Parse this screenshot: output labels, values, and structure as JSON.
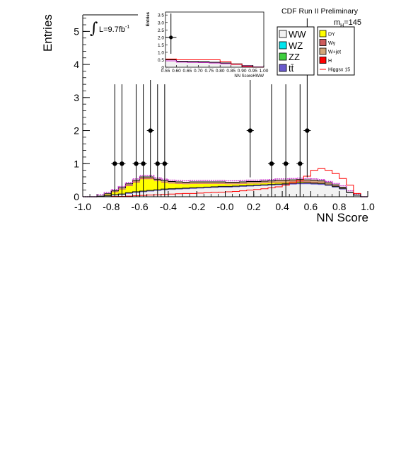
{
  "chart_data": {
    "type": "histogram",
    "header": "CDF Run II Preliminary",
    "xlabel": "NN Score",
    "ylabel": "Entries",
    "luminosity_label": "L=9.7fb",
    "luminosity_sup": "-1",
    "mass_label": "m",
    "mass_sub": "H",
    "mass_value": "=145",
    "xlim": [
      -1.0,
      1.0
    ],
    "ylim": [
      0,
      5.5
    ],
    "x_tick_labels": [
      "-1.0",
      "-0.8",
      "-0.6",
      "-0.4",
      "-0.2",
      "-0.0",
      "0.2",
      "0.4",
      "0.6",
      "0.8",
      "1.0"
    ],
    "y_tick_labels": [
      "0",
      "1",
      "2",
      "3",
      "4",
      "5"
    ],
    "legend": {
      "left": [
        {
          "label": "WW",
          "color": "#f2f2f2"
        },
        {
          "label": "WZ",
          "color": "#00e5ee"
        },
        {
          "label": "ZZ",
          "color": "#3fcf3f"
        },
        {
          "label": "tt̄",
          "color": "#6a5acd"
        }
      ],
      "right": [
        {
          "label": "DY",
          "color": "#ffff00"
        },
        {
          "label": "Wγ",
          "color": "#cd5c5c"
        },
        {
          "label": "W+jet",
          "color": "#d2a679"
        },
        {
          "label": "H",
          "color": "#ff0000"
        },
        {
          "label": "Higgsx 15",
          "color": "#ff0000",
          "style": "line"
        }
      ]
    },
    "bin_width": 0.05,
    "bin_edges_start": -1.0,
    "stack_order": [
      "WW",
      "tt",
      "ZZ",
      "WZ",
      "DY",
      "Wgamma",
      "Wjet",
      "H"
    ],
    "stack_colors": {
      "WW": "#f2f2f2",
      "tt": "#6a5acd",
      "ZZ": "#3fcf3f",
      "WZ": "#00e5ee",
      "DY": "#ffff00",
      "Wgamma": "#cd5c5c",
      "Wjet": "#d2a679",
      "H": "#ff0000"
    },
    "background_stack": {
      "WW": [
        0,
        0,
        0.01,
        0.02,
        0.04,
        0.06,
        0.09,
        0.12,
        0.14,
        0.16,
        0.18,
        0.2,
        0.21,
        0.22,
        0.23,
        0.24,
        0.25,
        0.26,
        0.27,
        0.28,
        0.28,
        0.29,
        0.3,
        0.31,
        0.32,
        0.33,
        0.34,
        0.35,
        0.36,
        0.37,
        0.38,
        0.38,
        0.37,
        0.36,
        0.33,
        0.28,
        0.22,
        0.12,
        0.04,
        0
      ],
      "tt": [
        0,
        0,
        0,
        0.01,
        0.01,
        0.01,
        0.02,
        0.02,
        0.02,
        0.02,
        0.02,
        0.02,
        0.02,
        0.02,
        0.02,
        0.02,
        0.02,
        0.02,
        0.02,
        0.02,
        0.02,
        0.02,
        0.02,
        0.02,
        0.02,
        0.02,
        0.02,
        0.02,
        0.02,
        0.03,
        0.03,
        0.03,
        0.03,
        0.03,
        0.02,
        0.02,
        0.02,
        0.01,
        0.01,
        0
      ],
      "ZZ": [
        0,
        0,
        0,
        0,
        0.01,
        0.01,
        0.01,
        0.01,
        0.01,
        0.01,
        0.01,
        0.01,
        0.01,
        0.01,
        0.01,
        0.01,
        0.01,
        0.01,
        0.01,
        0.01,
        0.01,
        0.01,
        0.01,
        0.01,
        0.01,
        0.01,
        0.01,
        0.01,
        0.01,
        0.01,
        0.01,
        0.01,
        0.01,
        0.01,
        0.01,
        0.01,
        0.01,
        0,
        0,
        0
      ],
      "WZ": [
        0,
        0,
        0,
        0,
        0,
        0,
        0,
        0,
        0,
        0,
        0,
        0,
        0,
        0,
        0,
        0,
        0,
        0,
        0,
        0,
        0,
        0,
        0,
        0,
        0,
        0,
        0,
        0,
        0,
        0,
        0,
        0,
        0,
        0,
        0,
        0,
        0,
        0,
        0,
        0
      ],
      "DY": [
        0,
        0,
        0.01,
        0.04,
        0.08,
        0.14,
        0.2,
        0.28,
        0.36,
        0.34,
        0.26,
        0.2,
        0.16,
        0.14,
        0.12,
        0.12,
        0.11,
        0.1,
        0.09,
        0.08,
        0.07,
        0.06,
        0.06,
        0.06,
        0.05,
        0.05,
        0.05,
        0.05,
        0.04,
        0.03,
        0.03,
        0.02,
        0.02,
        0.02,
        0.01,
        0.01,
        0.01,
        0,
        0,
        0
      ],
      "Wgamma": [
        0,
        0,
        0,
        0.01,
        0.02,
        0.02,
        0.03,
        0.03,
        0.03,
        0.03,
        0.02,
        0.02,
        0.02,
        0.02,
        0.02,
        0.02,
        0.02,
        0.02,
        0.02,
        0.02,
        0.02,
        0.02,
        0.02,
        0.02,
        0.02,
        0.02,
        0.02,
        0.02,
        0.02,
        0.02,
        0.02,
        0.02,
        0.02,
        0.02,
        0.01,
        0.01,
        0.01,
        0,
        0,
        0
      ],
      "Wjet": [
        0,
        0,
        0,
        0.01,
        0.02,
        0.03,
        0.04,
        0.04,
        0.04,
        0.04,
        0.04,
        0.04,
        0.04,
        0.04,
        0.04,
        0.04,
        0.04,
        0.04,
        0.04,
        0.04,
        0.04,
        0.04,
        0.04,
        0.04,
        0.04,
        0.04,
        0.04,
        0.04,
        0.04,
        0.04,
        0.04,
        0.04,
        0.04,
        0.03,
        0.03,
        0.02,
        0.02,
        0.01,
        0,
        0
      ],
      "H": [
        0,
        0,
        0,
        0,
        0,
        0,
        0,
        0,
        0,
        0,
        0,
        0,
        0,
        0,
        0,
        0,
        0,
        0,
        0,
        0,
        0,
        0,
        0,
        0,
        0,
        0,
        0,
        0.01,
        0.01,
        0.01,
        0.01,
        0.01,
        0.01,
        0.01,
        0.01,
        0.01,
        0,
        0,
        0,
        0
      ]
    },
    "signal_x15": [
      0,
      0,
      0,
      0,
      0.01,
      0.01,
      0.02,
      0.03,
      0.04,
      0.05,
      0.06,
      0.07,
      0.08,
      0.09,
      0.1,
      0.1,
      0.11,
      0.12,
      0.13,
      0.14,
      0.15,
      0.16,
      0.18,
      0.2,
      0.22,
      0.24,
      0.27,
      0.3,
      0.35,
      0.42,
      0.5,
      0.62,
      0.8,
      0.85,
      0.8,
      0.7,
      0.55,
      0.35,
      0.1,
      0
    ],
    "data_points": [
      {
        "x": -0.775,
        "y": 1
      },
      {
        "x": -0.725,
        "y": 1
      },
      {
        "x": -0.625,
        "y": 1
      },
      {
        "x": -0.575,
        "y": 1
      },
      {
        "x": -0.525,
        "y": 2
      },
      {
        "x": -0.475,
        "y": 1
      },
      {
        "x": -0.425,
        "y": 1
      },
      {
        "x": 0.175,
        "y": 2
      },
      {
        "x": 0.325,
        "y": 1
      },
      {
        "x": 0.425,
        "y": 1
      },
      {
        "x": 0.525,
        "y": 1
      },
      {
        "x": 0.575,
        "y": 2
      }
    ],
    "inset": {
      "xlabel": "NN ScoreHWW",
      "ylabel": "Entries",
      "xlim": [
        0.55,
        1.0
      ],
      "ylim": [
        0,
        3.7
      ],
      "x_tick_labels": [
        "0.55",
        "0.60",
        "0.65",
        "0.70",
        "0.75",
        "0.80",
        "0.85",
        "0.90",
        "0.95",
        "1.00"
      ],
      "y_tick_labels": [
        "0",
        "0.5",
        "1.0",
        "1.5",
        "2.0",
        "2.5",
        "3.0",
        "3.5"
      ],
      "bin_width": 0.05,
      "bin_edges_start": 0.55,
      "background_total": [
        0.5,
        0.4,
        0.38,
        0.36,
        0.33,
        0.28,
        0.22,
        0.1,
        0.02
      ],
      "signal_x15": [
        0.55,
        0.5,
        0.5,
        0.5,
        0.5,
        0.38,
        0.2,
        0.05,
        0.0
      ],
      "data_points": [
        {
          "x": 0.575,
          "y": 2
        }
      ]
    }
  }
}
